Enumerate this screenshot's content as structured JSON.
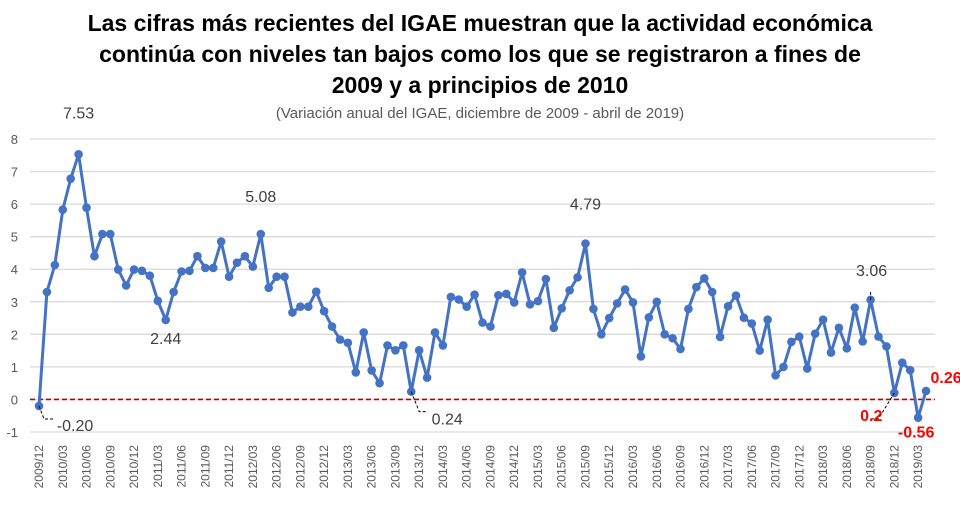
{
  "chart_data": {
    "type": "line",
    "title_lines": [
      "Las cifras más recientes del IGAE muestran que la actividad económica",
      "continúa con niveles tan bajos como los que se registraron a fines de",
      "2009 y a principios de 2010"
    ],
    "subtitle": "(Variación anual del IGAE, diciembre de 2009 - abril de 2019)",
    "xlabel": "",
    "ylabel": "",
    "ylim": [
      -1,
      8
    ],
    "yticks": [
      -1,
      0,
      1,
      2,
      3,
      4,
      5,
      6,
      7,
      8
    ],
    "grid": true,
    "reference_line": {
      "value": 0,
      "color": "#C00000",
      "style": "dashed"
    },
    "series_color": "#4472C4",
    "start": "2009/12",
    "tick_every_months": 3,
    "x": [
      "2009/12",
      "2010/01",
      "2010/02",
      "2010/03",
      "2010/04",
      "2010/05",
      "2010/06",
      "2010/07",
      "2010/08",
      "2010/09",
      "2010/10",
      "2010/11",
      "2010/12",
      "2011/01",
      "2011/02",
      "2011/03",
      "2011/04",
      "2011/05",
      "2011/06",
      "2011/07",
      "2011/08",
      "2011/09",
      "2011/10",
      "2011/11",
      "2011/12",
      "2012/01",
      "2012/02",
      "2012/03",
      "2012/04",
      "2012/05",
      "2012/06",
      "2012/07",
      "2012/08",
      "2012/09",
      "2012/10",
      "2012/11",
      "2012/12",
      "2013/01",
      "2013/02",
      "2013/03",
      "2013/04",
      "2013/05",
      "2013/06",
      "2013/07",
      "2013/08",
      "2013/09",
      "2013/10",
      "2013/11",
      "2013/12",
      "2014/01",
      "2014/02",
      "2014/03",
      "2014/04",
      "2014/05",
      "2014/06",
      "2014/07",
      "2014/08",
      "2014/09",
      "2014/10",
      "2014/11",
      "2014/12",
      "2015/01",
      "2015/02",
      "2015/03",
      "2015/04",
      "2015/05",
      "2015/06",
      "2015/07",
      "2015/08",
      "2015/09",
      "2015/10",
      "2015/11",
      "2015/12",
      "2016/01",
      "2016/02",
      "2016/03",
      "2016/04",
      "2016/05",
      "2016/06",
      "2016/07",
      "2016/08",
      "2016/09",
      "2016/10",
      "2016/11",
      "2016/12",
      "2017/01",
      "2017/02",
      "2017/03",
      "2017/04",
      "2017/05",
      "2017/06",
      "2017/07",
      "2017/08",
      "2017/09",
      "2017/10",
      "2017/11",
      "2017/12",
      "2018/01",
      "2018/02",
      "2018/03",
      "2018/04",
      "2018/05",
      "2018/06",
      "2018/07",
      "2018/08",
      "2018/09",
      "2018/10",
      "2018/11",
      "2018/12",
      "2019/01",
      "2019/02",
      "2019/03",
      "2019/04"
    ],
    "values": [
      -0.2,
      3.3,
      4.13,
      5.83,
      6.78,
      7.53,
      5.89,
      4.4,
      5.08,
      5.08,
      3.99,
      3.5,
      3.99,
      3.95,
      3.8,
      3.03,
      2.44,
      3.3,
      3.93,
      3.95,
      4.4,
      4.04,
      4.04,
      4.85,
      3.77,
      4.2,
      4.4,
      4.08,
      5.08,
      3.43,
      3.77,
      3.77,
      2.67,
      2.85,
      2.85,
      3.31,
      2.71,
      2.24,
      1.84,
      1.74,
      0.83,
      2.06,
      0.89,
      0.5,
      1.66,
      1.51,
      1.66,
      0.24,
      1.51,
      0.67,
      2.06,
      1.66,
      3.15,
      3.07,
      2.85,
      3.22,
      2.36,
      2.24,
      3.2,
      3.24,
      2.98,
      3.9,
      2.92,
      3.02,
      3.7,
      2.2,
      2.8,
      3.35,
      3.75,
      4.79,
      2.78,
      2.0,
      2.5,
      2.95,
      3.38,
      2.98,
      1.32,
      2.52,
      3.0,
      2.0,
      1.88,
      1.55,
      2.78,
      3.45,
      3.72,
      3.3,
      1.92,
      2.86,
      3.19,
      2.51,
      2.33,
      1.5,
      2.45,
      0.74,
      1.0,
      1.77,
      1.93,
      0.95,
      2.02,
      2.45,
      1.44,
      2.2,
      1.57,
      2.82,
      1.78,
      3.06,
      1.93,
      1.63,
      0.2,
      1.13,
      0.9,
      -0.56,
      0.26
    ],
    "annotations": [
      {
        "x": "2009/12",
        "label": "-0.20",
        "color": "#404040",
        "leader": true
      },
      {
        "x": "2010/05",
        "label": "7.53",
        "color": "#404040",
        "leader": false
      },
      {
        "x": "2011/04",
        "label": "2.44",
        "color": "#404040",
        "leader": false
      },
      {
        "x": "2012/04",
        "label": "5.08",
        "color": "#404040",
        "leader": false
      },
      {
        "x": "2013/11",
        "label": "0.24",
        "color": "#404040",
        "leader": true
      },
      {
        "x": "2015/09",
        "label": "4.79",
        "color": "#404040",
        "leader": false
      },
      {
        "x": "2018/09",
        "label": "3.06",
        "color": "#404040",
        "leader": true
      },
      {
        "x": "2018/12",
        "label": "0.2",
        "color": "#FF0000",
        "leader": true
      },
      {
        "x": "2019/03",
        "label": "-0.56",
        "color": "#FF0000",
        "leader": false
      },
      {
        "x": "2019/04",
        "label": "0.26",
        "color": "#FF0000",
        "leader": false
      }
    ]
  }
}
